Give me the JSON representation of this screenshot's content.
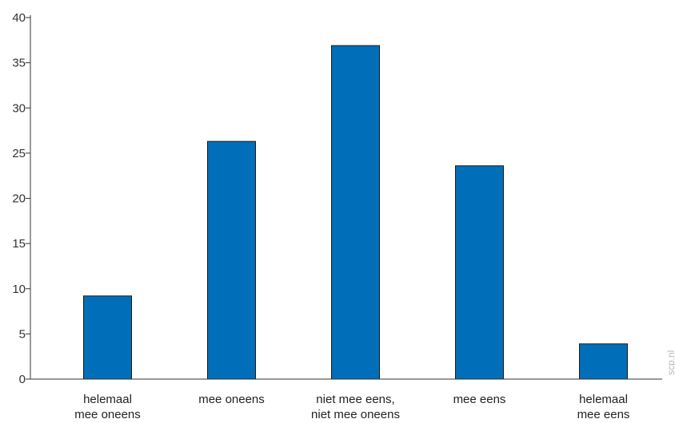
{
  "chart_data": {
    "type": "bar",
    "categories": [
      [
        "helemaal",
        "mee oneens"
      ],
      [
        "mee oneens"
      ],
      [
        "niet mee eens,",
        "niet mee oneens"
      ],
      [
        "mee eens"
      ],
      [
        "helemaal",
        "mee eens"
      ]
    ],
    "values": [
      9.2,
      26.3,
      36.9,
      23.6,
      3.9
    ],
    "ylim": [
      0,
      40
    ],
    "yticks": [
      "0",
      "5",
      "10",
      "15",
      "20",
      "25",
      "30",
      "35",
      "40"
    ],
    "bar_color": "#006eb9",
    "bar_edge_color": "#1a1a1a",
    "axis_color": "#333333",
    "grid": false,
    "title": "",
    "xlabel": "",
    "ylabel": ""
  },
  "watermark": "scp.nl"
}
